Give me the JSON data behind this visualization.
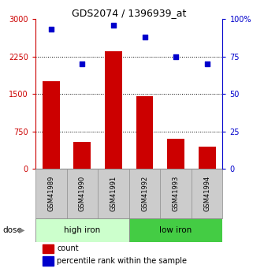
{
  "title": "GDS2074 / 1396939_at",
  "categories": [
    "GSM41989",
    "GSM41990",
    "GSM41991",
    "GSM41992",
    "GSM41993",
    "GSM41994"
  ],
  "bar_values": [
    1750,
    550,
    2350,
    1450,
    600,
    450
  ],
  "scatter_values": [
    93,
    70,
    96,
    88,
    75,
    70
  ],
  "bar_color": "#cc0000",
  "scatter_color": "#0000cc",
  "left_ylim": [
    0,
    3000
  ],
  "right_ylim": [
    0,
    100
  ],
  "left_yticks": [
    0,
    750,
    1500,
    2250,
    3000
  ],
  "right_yticks": [
    0,
    25,
    50,
    75,
    100
  ],
  "left_yticklabels": [
    "0",
    "750",
    "1500",
    "2250",
    "3000"
  ],
  "right_yticklabels": [
    "0",
    "25",
    "50",
    "75",
    "100%"
  ],
  "left_ycolor": "#cc0000",
  "right_ycolor": "#0000cc",
  "group1_label": "high iron",
  "group2_label": "low iron",
  "group1_color": "#ccffcc",
  "group2_color": "#44cc44",
  "dose_label": "dose",
  "legend_count": "count",
  "legend_percentile": "percentile rank within the sample",
  "bg_color": "#ffffff",
  "grid_color": "black",
  "grid_style": "dotted",
  "xlabel_bg": "#cccccc",
  "xlabel_border": "#999999"
}
